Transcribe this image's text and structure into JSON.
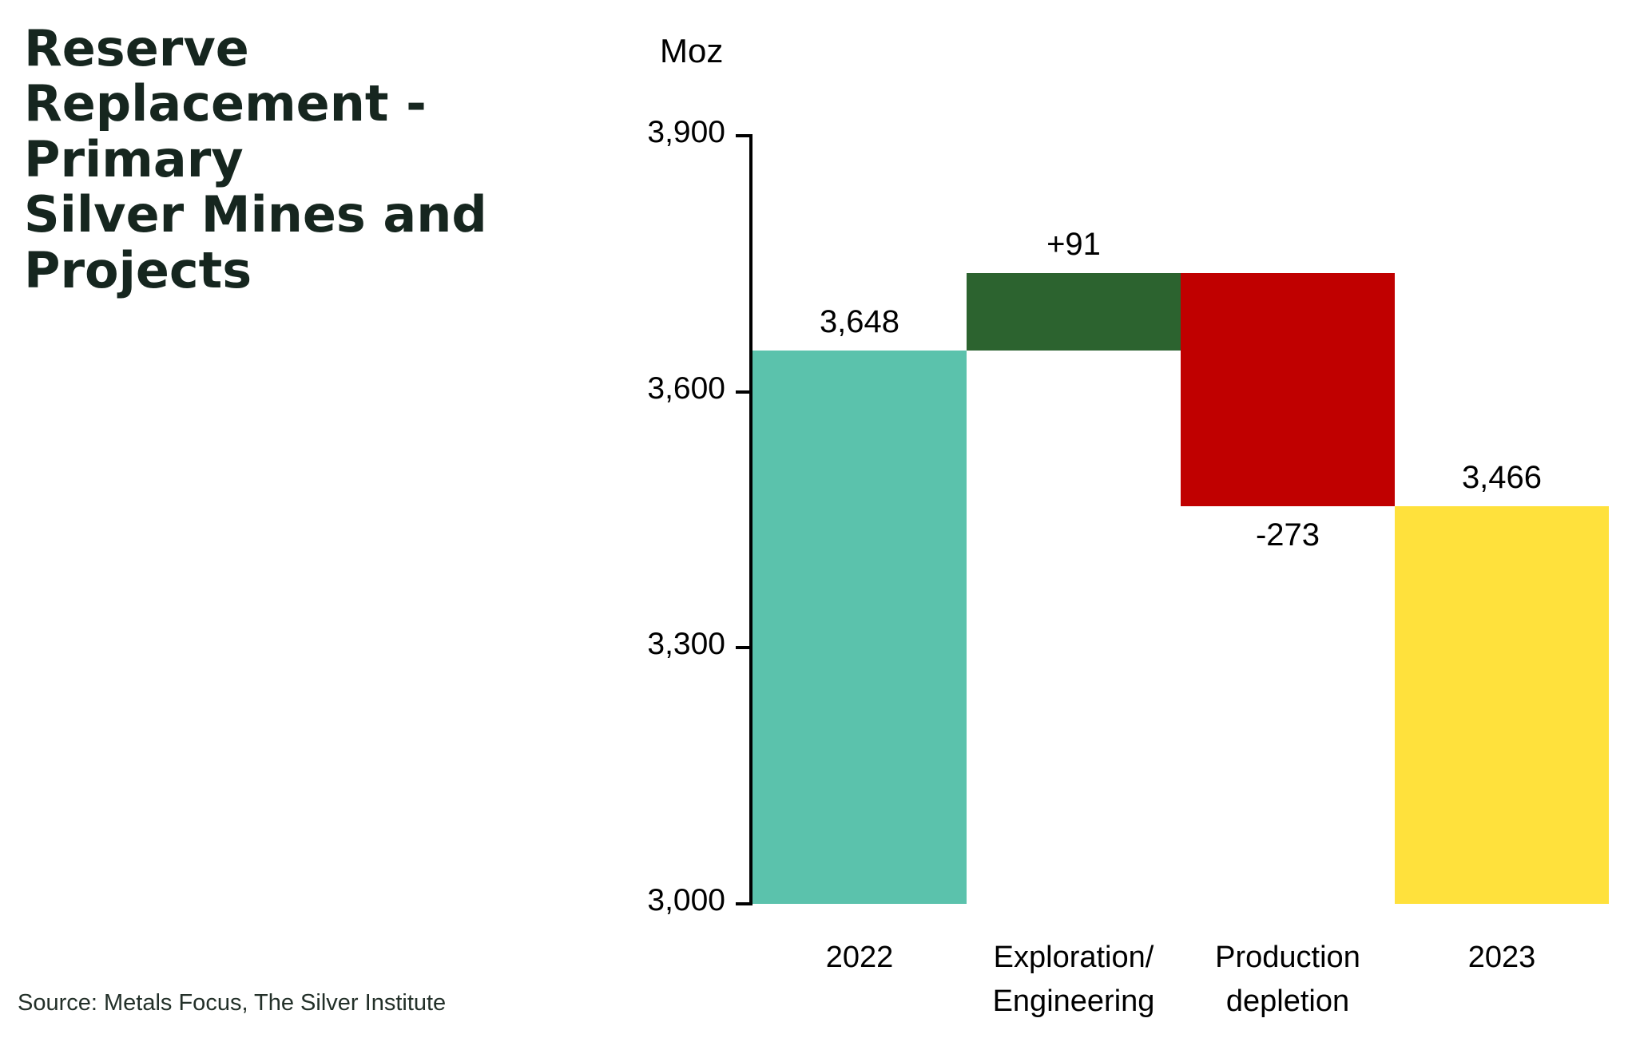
{
  "page": {
    "title_lines": "Reserve\nReplacement -\nPrimary\nSilver Mines and\nProjects",
    "source": "Source: Metals Focus, The Silver Institute"
  },
  "colors": {
    "title": "#16261F",
    "axis": "#000000",
    "source_text": "#233029",
    "teal": "#5BC2AC",
    "green": "#2C632F",
    "red": "#C00000",
    "yellow": "#FFE13C"
  },
  "chart_data": {
    "type": "waterfall",
    "title": "Reserve Replacement - Primary Silver Mines and Projects",
    "unit_label": "Moz",
    "ylabel": "Moz",
    "xlabel": "",
    "ylim": [
      3000,
      3900
    ],
    "yticks": [
      3900,
      3600,
      3300,
      3000
    ],
    "ytick_labels": [
      "3,900",
      "3,600",
      "3,300",
      "3,000"
    ],
    "grid": false,
    "legend": false,
    "categories": [
      "2022",
      "Exploration/\nEngineering",
      "Production\ndepletion",
      "2023"
    ],
    "bars": [
      {
        "name": "2022",
        "category": "2022",
        "start": 3000,
        "end": 3648,
        "value": 3648,
        "label": "3,648",
        "label_side": "above",
        "color_key": "teal"
      },
      {
        "name": "exploration-engineering",
        "category": "Exploration/\nEngineering",
        "start": 3648,
        "end": 3739,
        "value": 91,
        "label": "+91",
        "label_side": "above",
        "color_key": "green"
      },
      {
        "name": "production-depletion",
        "category": "Production\ndepletion",
        "start": 3739,
        "end": 3466,
        "value": -273,
        "label": "-273",
        "label_side": "below",
        "color_key": "red"
      },
      {
        "name": "2023",
        "category": "2023",
        "start": 3000,
        "end": 3466,
        "value": 3466,
        "label": "3,466",
        "label_side": "above",
        "color_key": "yellow"
      }
    ]
  }
}
